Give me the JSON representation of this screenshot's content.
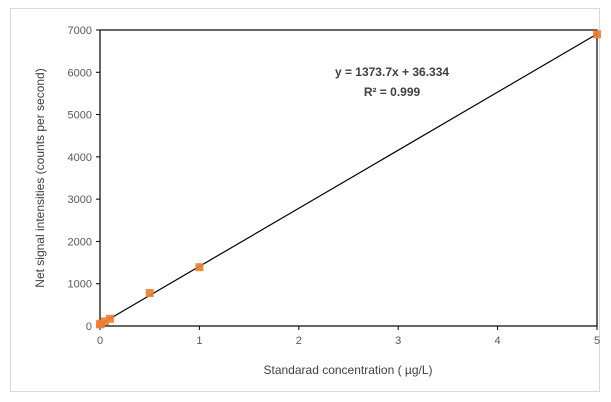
{
  "chart_data": {
    "type": "scatter",
    "xlabel": "Standarad concentration ( µg/L)",
    "ylabel": "Net signal intensities (counts per second)",
    "xlim": [
      0,
      5
    ],
    "ylim": [
      0,
      7000
    ],
    "xticks": [
      0,
      1,
      2,
      3,
      4,
      5
    ],
    "yticks": [
      0,
      1000,
      2000,
      3000,
      4000,
      5000,
      6000,
      7000
    ],
    "grid": false,
    "series": [
      {
        "color": "#ed7d31",
        "x": [
          0,
          0.01,
          0.05,
          0.1,
          0.5,
          1,
          5
        ],
        "y": [
          40,
          55,
          110,
          170,
          780,
          1390,
          6900
        ]
      }
    ],
    "trendline": {
      "type": "linear",
      "slope": 1373.7,
      "intercept": 36.334,
      "color": "#000000"
    },
    "annotations": {
      "equation": "y = 1373.7x + 36.334",
      "r_squared": "R² = 0.999"
    }
  }
}
